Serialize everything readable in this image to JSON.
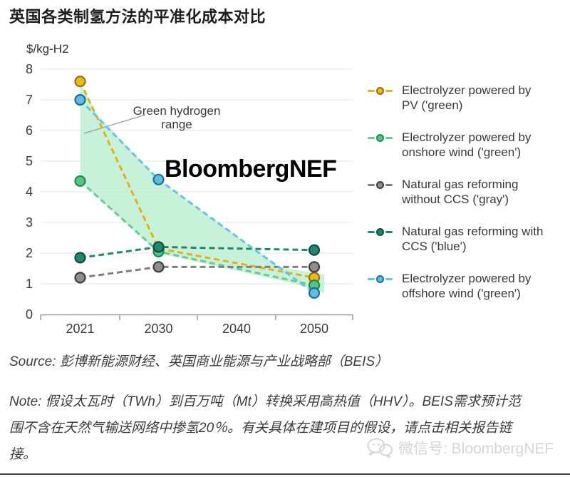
{
  "page": {
    "title": "英国各类制氢方法的平准化成本对比",
    "watermark": "BloombergNEF",
    "source": "Source: 彭博新能源财经、英国商业能源与产业战略部（BEIS）",
    "note": "Note: 假设太瓦时（TWh）到百万吨（Mt）转换采用高热值（HHV）。BEIS需求预计范围不含在天然气输送网络中掺氢20％。有关具体在建项目的假设，请点击相关报告链接。",
    "wechat_label": "微信号: BloombergNEF"
  },
  "chart_data": {
    "type": "line",
    "title": "英国各类制氢方法的平准化成本对比",
    "unit_label": "$/kg-H2",
    "xlabel": "",
    "ylabel": "$/kg-H2",
    "x_tick_labels": [
      "2021",
      "2030",
      "2040",
      "2050"
    ],
    "x_tick_years": [
      2021,
      2030,
      2040,
      2050
    ],
    "ylim": [
      0,
      8
    ],
    "y_ticks": [
      0,
      1,
      2,
      3,
      4,
      5,
      6,
      7,
      8
    ],
    "grid": true,
    "line_style": "dashed",
    "legend_position": "right",
    "axis_color": "#9b9b9b",
    "grid_color": "#e4e4e4",
    "annotation": {
      "lines": [
        "Green hydrogen",
        "range"
      ],
      "points_to": "green shaded area"
    },
    "series": [
      {
        "name": "Electrolyzer powered by PV ('green)",
        "legend_lines": [
          "Electrolyzer powered by",
          "PV ('green)"
        ],
        "years": [
          2021,
          2030,
          2050
        ],
        "values": [
          7.6,
          2.15,
          1.2
        ],
        "color": "#e4af1e",
        "marker_fill": "#f0b81f",
        "marker_edge": "#8f7504"
      },
      {
        "name": "Electrolyzer powered by onshore wind ('green')",
        "legend_lines": [
          "Electrolyzer powered by",
          "onshore wind ('green')"
        ],
        "years": [
          2021,
          2030,
          2050
        ],
        "values": [
          4.35,
          2.05,
          0.95
        ],
        "color": "#67cb94",
        "marker_fill": "#57c386",
        "marker_edge": "#1d8a55"
      },
      {
        "name": "Natural gas reforming without CCS ('gray')",
        "legend_lines": [
          "Natural gas reforming",
          "without CCS ('gray')"
        ],
        "years": [
          2021,
          2030,
          2050
        ],
        "values": [
          1.2,
          1.55,
          1.55
        ],
        "color": "#7f7f7f",
        "marker_fill": "#8e8e8e",
        "marker_edge": "#3f3f3f"
      },
      {
        "name": "Natural gas reforming with CCS ('blue')",
        "legend_lines": [
          "Natural gas reforming with",
          "CCS ('blue')"
        ],
        "years": [
          2021,
          2030,
          2050
        ],
        "values": [
          1.85,
          2.2,
          2.1
        ],
        "color": "#23876d",
        "marker_fill": "#23876d",
        "marker_edge": "#0b4f3f"
      },
      {
        "name": "Electrolyzer powered by offshore wind ('green')",
        "legend_lines": [
          "Electrolyzer powered by",
          "offshore wind ('green')"
        ],
        "years": [
          2021,
          2030,
          2050
        ],
        "values": [
          7.0,
          4.4,
          0.7
        ],
        "color": "#67c3e6",
        "marker_fill": "#5fbde2",
        "marker_edge": "#1f6f93"
      }
    ],
    "green_range": {
      "label": "Green hydrogen range",
      "fill": "#b9edcf",
      "upper": [
        [
          2021,
          7.55
        ],
        [
          2023,
          6.5
        ],
        [
          2030,
          4.4
        ],
        [
          2045.5,
          1.55
        ],
        [
          2051.3,
          1.3
        ]
      ],
      "lower": [
        [
          2021,
          4.35
        ],
        [
          2030,
          2.0
        ],
        [
          2047.5,
          1.0
        ],
        [
          2051.3,
          0.7
        ]
      ]
    }
  }
}
